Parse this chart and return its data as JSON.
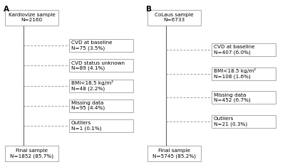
{
  "panel_A": {
    "label": "A",
    "top_box": {
      "text": "Kardiovize sample\nN=2160"
    },
    "exclusion_boxes": [
      {
        "text": "CVD at baseline\nN=75 (3.5%)"
      },
      {
        "text": "CVD status unknown\nN=89 (4.1%)"
      },
      {
        "text": "BMI<18.5 kg/m²\nN=48 (2.2%)"
      },
      {
        "text": "Missing data\nN=95 (4.4%)"
      },
      {
        "text": "Outliers\nN=1 (0.1%)"
      }
    ],
    "bottom_box": {
      "text": "Final sample\nN=1852 (85.7%)"
    }
  },
  "panel_B": {
    "label": "B",
    "top_box": {
      "text": "CoLaus sample\nN=6733"
    },
    "exclusion_boxes": [
      {
        "text": "CVD at baseline\nN=407 (6.0%)"
      },
      {
        "text": "BMI<18.5 kg/m²\nN=108 (1.6%)"
      },
      {
        "text": "Missing data\nN=452 (6.7%)"
      },
      {
        "text": "Outliers\nN=21 (0.3%)"
      }
    ],
    "bottom_box": {
      "text": "Final sample\nN=5745 (85.2%)"
    }
  },
  "box_color": "#ffffff",
  "box_edge_color": "#aaaaaa",
  "line_color": "#555555",
  "dashed_line_color": "#999999",
  "font_size": 5.2,
  "label_font_size": 7.5,
  "background_color": "#ffffff"
}
